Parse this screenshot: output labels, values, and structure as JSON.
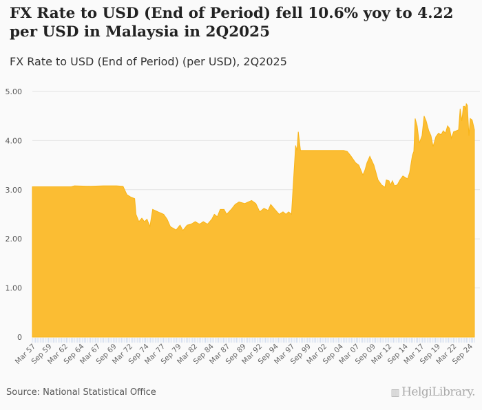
{
  "header": {
    "title": "FX Rate to USD (End of Period) fell 10.6% yoy to 4.22 per USD in Malaysia in 2Q2025",
    "subtitle": "FX Rate to USD (End of Period) (per USD), 2Q2025"
  },
  "footer": {
    "source": "Source: National Statistical Office",
    "logo": "HelgiLibrary."
  },
  "colors": {
    "fill": "#fbbd33",
    "stroke": "#f8b418",
    "grid": "#e2e2e2",
    "tick": "#c5d3ea"
  },
  "chart_data": {
    "type": "area",
    "title": "FX Rate to USD (End of Period) (per USD), 2Q2025",
    "xlabel": "",
    "ylabel": "per USD",
    "ylim": [
      0,
      5
    ],
    "xlim": [
      1957.0,
      2025.25
    ],
    "yticks": [
      {
        "v": 0,
        "label": "0"
      },
      {
        "v": 1,
        "label": "1.00"
      },
      {
        "v": 2,
        "label": "2.00"
      },
      {
        "v": 3,
        "label": "3.00"
      },
      {
        "v": 4,
        "label": "4.00"
      },
      {
        "v": 5,
        "label": "5.00"
      }
    ],
    "xtick_labels": [
      "Mar 57",
      "Sep 59",
      "Mar 62",
      "Sep 64",
      "Mar 67",
      "Sep 69",
      "Mar 72",
      "Sep 74",
      "Mar 77",
      "Sep 79",
      "Mar 82",
      "Sep 84",
      "Mar 87",
      "Sep 89",
      "Mar 92",
      "Sep 94",
      "Mar 97",
      "Sep 99",
      "Mar 02",
      "Sep 04",
      "Mar 07",
      "Sep 09",
      "Mar 12",
      "Sep 14",
      "Mar 17",
      "Sep 19",
      "Mar 22",
      "Sep 24"
    ],
    "grid": true,
    "points": [
      [
        1957.0,
        3.06
      ],
      [
        1963.0,
        3.06
      ],
      [
        1963.5,
        3.08
      ],
      [
        1966.0,
        3.07
      ],
      [
        1968.0,
        3.08
      ],
      [
        1970.0,
        3.08
      ],
      [
        1971.0,
        3.07
      ],
      [
        1971.6,
        2.9
      ],
      [
        1972.2,
        2.85
      ],
      [
        1972.8,
        2.82
      ],
      [
        1973.0,
        2.5
      ],
      [
        1973.45,
        2.35
      ],
      [
        1973.9,
        2.42
      ],
      [
        1974.3,
        2.35
      ],
      [
        1974.7,
        2.4
      ],
      [
        1975.15,
        2.25
      ],
      [
        1975.57,
        2.6
      ],
      [
        1976.4,
        2.55
      ],
      [
        1977.27,
        2.5
      ],
      [
        1977.8,
        2.4
      ],
      [
        1978.3,
        2.25
      ],
      [
        1979.2,
        2.18
      ],
      [
        1979.8,
        2.28
      ],
      [
        1980.24,
        2.17
      ],
      [
        1980.9,
        2.28
      ],
      [
        1981.5,
        2.3
      ],
      [
        1982.15,
        2.35
      ],
      [
        1982.8,
        2.3
      ],
      [
        1983.4,
        2.35
      ],
      [
        1984.05,
        2.3
      ],
      [
        1984.7,
        2.4
      ],
      [
        1985.1,
        2.5
      ],
      [
        1985.55,
        2.45
      ],
      [
        1986.0,
        2.6
      ],
      [
        1986.6,
        2.6
      ],
      [
        1987.0,
        2.5
      ],
      [
        1987.7,
        2.6
      ],
      [
        1988.3,
        2.7
      ],
      [
        1988.9,
        2.75
      ],
      [
        1989.8,
        2.72
      ],
      [
        1990.85,
        2.78
      ],
      [
        1991.5,
        2.72
      ],
      [
        1992.1,
        2.55
      ],
      [
        1992.75,
        2.62
      ],
      [
        1993.4,
        2.58
      ],
      [
        1993.8,
        2.7
      ],
      [
        1994.45,
        2.6
      ],
      [
        1995.1,
        2.5
      ],
      [
        1995.7,
        2.55
      ],
      [
        1996.15,
        2.5
      ],
      [
        1996.57,
        2.55
      ],
      [
        1997.0,
        2.5
      ],
      [
        1997.64,
        3.9
      ],
      [
        1997.85,
        3.8
      ],
      [
        1998.06,
        4.18
      ],
      [
        1998.4,
        3.8
      ],
      [
        2005.07,
        3.8
      ],
      [
        2005.6,
        3.78
      ],
      [
        2006.1,
        3.7
      ],
      [
        2006.9,
        3.55
      ],
      [
        2007.4,
        3.5
      ],
      [
        2008.03,
        3.3
      ],
      [
        2008.35,
        3.4
      ],
      [
        2008.67,
        3.55
      ],
      [
        2009.1,
        3.68
      ],
      [
        2009.73,
        3.5
      ],
      [
        2010.37,
        3.2
      ],
      [
        2010.9,
        3.1
      ],
      [
        2011.43,
        3.05
      ],
      [
        2011.64,
        3.2
      ],
      [
        2012.07,
        3.18
      ],
      [
        2012.28,
        3.1
      ],
      [
        2012.6,
        3.18
      ],
      [
        2012.9,
        3.08
      ],
      [
        2013.34,
        3.1
      ],
      [
        2013.76,
        3.2
      ],
      [
        2014.2,
        3.28
      ],
      [
        2014.93,
        3.22
      ],
      [
        2015.25,
        3.35
      ],
      [
        2015.67,
        3.7
      ],
      [
        2015.9,
        3.78
      ],
      [
        2016.1,
        4.45
      ],
      [
        2016.4,
        4.3
      ],
      [
        2016.74,
        3.95
      ],
      [
        2017.16,
        4.1
      ],
      [
        2017.48,
        4.5
      ],
      [
        2017.8,
        4.4
      ],
      [
        2018.2,
        4.2
      ],
      [
        2018.54,
        4.1
      ],
      [
        2018.86,
        3.88
      ],
      [
        2019.3,
        4.08
      ],
      [
        2019.7,
        4.15
      ],
      [
        2020.1,
        4.12
      ],
      [
        2020.45,
        4.2
      ],
      [
        2020.77,
        4.15
      ],
      [
        2021.1,
        4.3
      ],
      [
        2021.4,
        4.25
      ],
      [
        2021.7,
        4.05
      ],
      [
        2022.04,
        4.18
      ],
      [
        2022.46,
        4.2
      ],
      [
        2022.8,
        4.22
      ],
      [
        2023.05,
        4.65
      ],
      [
        2023.3,
        4.4
      ],
      [
        2023.55,
        4.7
      ],
      [
        2023.75,
        4.7
      ],
      [
        2023.85,
        4.62
      ],
      [
        2024.0,
        4.75
      ],
      [
        2024.15,
        4.72
      ],
      [
        2024.4,
        4.1
      ],
      [
        2024.6,
        4.45
      ],
      [
        2024.9,
        4.42
      ],
      [
        2025.25,
        4.22
      ]
    ]
  }
}
